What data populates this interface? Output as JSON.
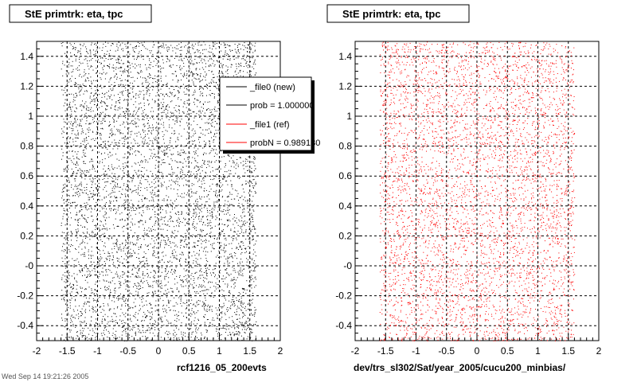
{
  "footer_note": "Wed Sep 14 19:21:26 2005",
  "chart_data": [
    {
      "type": "scatter",
      "title": "StE primtrk: eta, tpc",
      "xlabel": "rcf1216_05_200evts",
      "ylabel": "",
      "xlim": [
        -2,
        2
      ],
      "ylim": [
        -0.5,
        1.5
      ],
      "x_ticks": [
        "-2",
        "-1.5",
        "-1",
        "-0.5",
        "0",
        "0.5",
        "1",
        "1.5",
        "2"
      ],
      "y_ticks": [
        "-0.4",
        "-0.2",
        "-0",
        "0.2",
        "0.4",
        "0.6",
        "0.8",
        "1",
        "1.2",
        "1.4"
      ],
      "grid": true,
      "point_color": "#000000",
      "distribution": {
        "x_min": -1.6,
        "x_max": 1.6,
        "y_min": -0.5,
        "y_max": 1.5,
        "approx_points": 6000,
        "seed": 1216
      },
      "legend": {
        "placement": "top-right",
        "entries": [
          {
            "label": "_file0 (new)",
            "color": "#000000"
          },
          {
            "label": "prob = 1.000000",
            "color": "#000000"
          },
          {
            "label": "_file1 (ref)",
            "color": "#ff0000"
          },
          {
            "label": "probN = 0.989130",
            "color": "#ff0000"
          }
        ]
      }
    },
    {
      "type": "scatter",
      "title": "StE primtrk: eta, tpc",
      "xlabel": "dev/trs_sl302/Sat/year_2005/cucu200_minbias/",
      "ylabel": "",
      "xlim": [
        -2,
        2
      ],
      "ylim": [
        -0.5,
        1.5
      ],
      "x_ticks": [
        "-2",
        "-1.5",
        "-1",
        "-0.5",
        "0",
        "0.5",
        "1",
        "1.5",
        "2"
      ],
      "y_ticks": [
        "-0.4",
        "-0.2",
        "-0",
        "0.2",
        "0.4",
        "0.6",
        "0.8",
        "1",
        "1.2",
        "1.4"
      ],
      "grid": true,
      "point_color": "#ff0000",
      "distribution": {
        "x_min": -1.6,
        "x_max": 1.6,
        "y_min": -0.5,
        "y_max": 1.5,
        "approx_points": 5000,
        "seed": 302
      }
    }
  ]
}
